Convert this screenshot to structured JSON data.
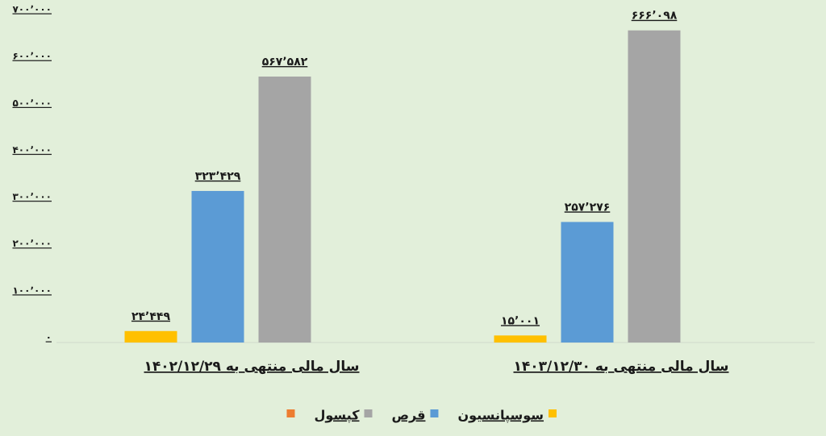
{
  "chart_data": {
    "type": "bar",
    "categories": [
      "سال  مالی منتهی به ۱۴۰۲/۱۲/۲۹",
      "سال مالی منتهی به ۱۴۰۳/۱۲/۳۰"
    ],
    "series": [
      {
        "name": "سوسپانسیون",
        "color": "#ffc000",
        "values": [
          24449,
          15001
        ],
        "value_labels": [
          "۲۴٬۴۴۹",
          "۱۵٬۰۰۱"
        ]
      },
      {
        "name": "قرص",
        "color": "#5b9bd5",
        "values": [
          323429,
          257276
        ],
        "value_labels": [
          "۳۲۳٬۴۲۹",
          "۲۵۷٬۲۷۶"
        ]
      },
      {
        "name": "کپسول",
        "color": "#a5a5a5",
        "values": [
          567582,
          666098
        ],
        "value_labels": [
          "۵۶۷٬۵۸۲",
          "۶۶۶٬۰۹۸"
        ]
      },
      {
        "color": "#ed7d31",
        "values": [
          null,
          null
        ]
      }
    ],
    "ylim": [
      0,
      700000
    ],
    "yticks": [
      {
        "value": 0,
        "label": "۰"
      },
      {
        "value": 100000,
        "label": "۱۰۰٬۰۰۰"
      },
      {
        "value": 200000,
        "label": "۲۰۰٬۰۰۰"
      },
      {
        "value": 300000,
        "label": "۳۰۰٬۰۰۰"
      },
      {
        "value": 400000,
        "label": "۴۰۰٬۰۰۰"
      },
      {
        "value": 500000,
        "label": "۵۰۰٬۰۰۰"
      },
      {
        "value": 600000,
        "label": "۶۰۰٬۰۰۰"
      },
      {
        "value": 700000,
        "label": "۷۰۰٬۰۰۰"
      }
    ],
    "grid": false
  }
}
